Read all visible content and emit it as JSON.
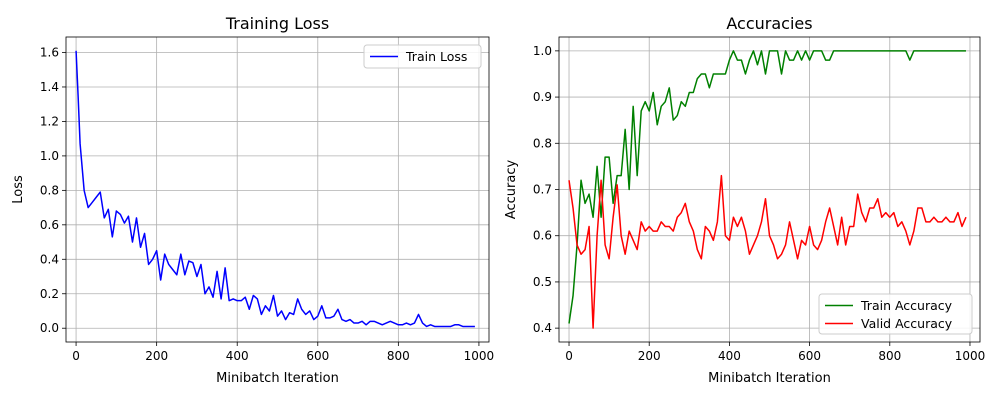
{
  "chart_data": [
    {
      "type": "line",
      "title": "Training Loss",
      "xlabel": "Minibatch Iteration",
      "ylabel": "Loss",
      "xlim": [
        -25,
        1025
      ],
      "ylim": [
        -0.08,
        1.69
      ],
      "xticks": [
        0,
        200,
        400,
        600,
        800,
        1000
      ],
      "xtick_labels": [
        "0",
        "200",
        "400",
        "600",
        "800",
        "1000"
      ],
      "yticks": [
        0.0,
        0.2,
        0.4,
        0.6,
        0.8,
        1.0,
        1.2,
        1.4,
        1.6
      ],
      "ytick_labels": [
        "0.0",
        "0.2",
        "0.4",
        "0.6",
        "0.8",
        "1.0",
        "1.2",
        "1.4",
        "1.6"
      ],
      "grid": true,
      "legend": "upper-right",
      "series": [
        {
          "name": "Train Loss",
          "color": "#0000ff",
          "x": [
            0,
            5,
            10,
            20,
            30,
            40,
            50,
            60,
            70,
            80,
            90,
            100,
            110,
            120,
            130,
            140,
            150,
            160,
            170,
            180,
            190,
            200,
            210,
            220,
            230,
            240,
            250,
            260,
            270,
            280,
            290,
            300,
            310,
            320,
            330,
            340,
            350,
            360,
            370,
            380,
            390,
            400,
            410,
            420,
            430,
            440,
            450,
            460,
            470,
            480,
            490,
            500,
            510,
            520,
            530,
            540,
            550,
            560,
            570,
            580,
            590,
            600,
            610,
            620,
            630,
            640,
            650,
            660,
            670,
            680,
            690,
            700,
            710,
            720,
            730,
            740,
            750,
            760,
            770,
            780,
            790,
            800,
            810,
            820,
            830,
            840,
            850,
            860,
            870,
            880,
            890,
            900,
            910,
            920,
            930,
            940,
            950,
            960,
            970,
            980,
            990
          ],
          "y": [
            1.61,
            1.35,
            1.07,
            0.8,
            0.7,
            0.73,
            0.76,
            0.79,
            0.64,
            0.69,
            0.53,
            0.68,
            0.66,
            0.61,
            0.65,
            0.5,
            0.64,
            0.47,
            0.55,
            0.37,
            0.4,
            0.45,
            0.28,
            0.43,
            0.37,
            0.34,
            0.31,
            0.43,
            0.31,
            0.39,
            0.38,
            0.3,
            0.37,
            0.2,
            0.24,
            0.18,
            0.33,
            0.17,
            0.35,
            0.16,
            0.17,
            0.16,
            0.16,
            0.18,
            0.11,
            0.19,
            0.17,
            0.08,
            0.13,
            0.1,
            0.19,
            0.07,
            0.1,
            0.05,
            0.09,
            0.08,
            0.17,
            0.11,
            0.08,
            0.1,
            0.05,
            0.07,
            0.13,
            0.06,
            0.06,
            0.07,
            0.11,
            0.05,
            0.04,
            0.05,
            0.03,
            0.03,
            0.04,
            0.02,
            0.04,
            0.04,
            0.03,
            0.02,
            0.03,
            0.04,
            0.03,
            0.02,
            0.02,
            0.03,
            0.02,
            0.03,
            0.08,
            0.03,
            0.01,
            0.02,
            0.01,
            0.01,
            0.01,
            0.01,
            0.01,
            0.02,
            0.02,
            0.01,
            0.01,
            0.01,
            0.01
          ]
        }
      ]
    },
    {
      "type": "line",
      "title": "Accuracies",
      "xlabel": "Minibatch Iteration",
      "ylabel": "Accuracy",
      "xlim": [
        -25,
        1025
      ],
      "ylim": [
        0.37,
        1.03
      ],
      "xticks": [
        0,
        200,
        400,
        600,
        800,
        1000
      ],
      "xtick_labels": [
        "0",
        "200",
        "400",
        "600",
        "800",
        "1000"
      ],
      "yticks": [
        0.4,
        0.5,
        0.6,
        0.7,
        0.8,
        0.9,
        1.0
      ],
      "ytick_labels": [
        "0.4",
        "0.5",
        "0.6",
        "0.7",
        "0.8",
        "0.9",
        "1.0"
      ],
      "grid": true,
      "legend": "lower-right",
      "series": [
        {
          "name": "Train Accuracy",
          "color": "#008000",
          "x": [
            0,
            10,
            20,
            30,
            40,
            50,
            60,
            70,
            80,
            90,
            100,
            110,
            120,
            130,
            140,
            150,
            160,
            170,
            180,
            190,
            200,
            210,
            220,
            230,
            240,
            250,
            260,
            270,
            280,
            290,
            300,
            310,
            320,
            330,
            340,
            350,
            360,
            370,
            380,
            390,
            400,
            410,
            420,
            430,
            440,
            450,
            460,
            470,
            480,
            490,
            500,
            510,
            520,
            530,
            540,
            550,
            560,
            570,
            580,
            590,
            600,
            610,
            620,
            630,
            640,
            650,
            660,
            670,
            680,
            690,
            700,
            710,
            720,
            730,
            740,
            750,
            760,
            770,
            780,
            790,
            800,
            810,
            820,
            830,
            840,
            850,
            860,
            870,
            880,
            890,
            900,
            910,
            920,
            930,
            940,
            950,
            960,
            970,
            980,
            990
          ],
          "y": [
            0.41,
            0.47,
            0.58,
            0.72,
            0.67,
            0.69,
            0.64,
            0.75,
            0.64,
            0.77,
            0.77,
            0.67,
            0.73,
            0.73,
            0.83,
            0.7,
            0.88,
            0.73,
            0.87,
            0.89,
            0.87,
            0.91,
            0.84,
            0.88,
            0.89,
            0.92,
            0.85,
            0.86,
            0.89,
            0.88,
            0.91,
            0.91,
            0.94,
            0.95,
            0.95,
            0.92,
            0.95,
            0.95,
            0.95,
            0.95,
            0.98,
            1.0,
            0.98,
            0.98,
            0.95,
            0.98,
            1.0,
            0.97,
            1.0,
            0.95,
            1.0,
            1.0,
            1.0,
            0.95,
            1.0,
            0.98,
            0.98,
            1.0,
            0.98,
            1.0,
            0.98,
            1.0,
            1.0,
            1.0,
            0.98,
            0.98,
            1.0,
            1.0,
            1.0,
            1.0,
            1.0,
            1.0,
            1.0,
            1.0,
            1.0,
            1.0,
            1.0,
            1.0,
            1.0,
            1.0,
            1.0,
            1.0,
            1.0,
            1.0,
            1.0,
            0.98,
            1.0,
            1.0,
            1.0,
            1.0,
            1.0,
            1.0,
            1.0,
            1.0,
            1.0,
            1.0,
            1.0,
            1.0,
            1.0,
            1.0
          ]
        },
        {
          "name": "Valid Accuracy",
          "color": "#ff0000",
          "x": [
            0,
            10,
            20,
            30,
            40,
            50,
            60,
            70,
            80,
            90,
            100,
            110,
            120,
            130,
            140,
            150,
            160,
            170,
            180,
            190,
            200,
            210,
            220,
            230,
            240,
            250,
            260,
            270,
            280,
            290,
            300,
            310,
            320,
            330,
            340,
            350,
            360,
            370,
            380,
            390,
            400,
            410,
            420,
            430,
            440,
            450,
            460,
            470,
            480,
            490,
            500,
            510,
            520,
            530,
            540,
            550,
            560,
            570,
            580,
            590,
            600,
            610,
            620,
            630,
            640,
            650,
            660,
            670,
            680,
            690,
            700,
            710,
            720,
            730,
            740,
            750,
            760,
            770,
            780,
            790,
            800,
            810,
            820,
            830,
            840,
            850,
            860,
            870,
            880,
            890,
            900,
            910,
            920,
            930,
            940,
            950,
            960,
            970,
            980,
            990
          ],
          "y": [
            0.72,
            0.66,
            0.58,
            0.56,
            0.57,
            0.62,
            0.4,
            0.6,
            0.72,
            0.58,
            0.55,
            0.64,
            0.71,
            0.6,
            0.56,
            0.61,
            0.59,
            0.57,
            0.63,
            0.61,
            0.62,
            0.61,
            0.61,
            0.63,
            0.62,
            0.62,
            0.61,
            0.64,
            0.65,
            0.67,
            0.63,
            0.61,
            0.57,
            0.55,
            0.62,
            0.61,
            0.59,
            0.63,
            0.73,
            0.6,
            0.59,
            0.64,
            0.62,
            0.64,
            0.61,
            0.56,
            0.58,
            0.6,
            0.63,
            0.68,
            0.6,
            0.58,
            0.55,
            0.56,
            0.58,
            0.63,
            0.59,
            0.55,
            0.59,
            0.58,
            0.62,
            0.58,
            0.57,
            0.59,
            0.63,
            0.66,
            0.62,
            0.58,
            0.64,
            0.58,
            0.62,
            0.62,
            0.69,
            0.65,
            0.63,
            0.66,
            0.66,
            0.68,
            0.64,
            0.65,
            0.64,
            0.65,
            0.62,
            0.63,
            0.61,
            0.58,
            0.61,
            0.66,
            0.66,
            0.63,
            0.63,
            0.64,
            0.63,
            0.63,
            0.64,
            0.63,
            0.63,
            0.65,
            0.62,
            0.64
          ]
        }
      ]
    }
  ]
}
